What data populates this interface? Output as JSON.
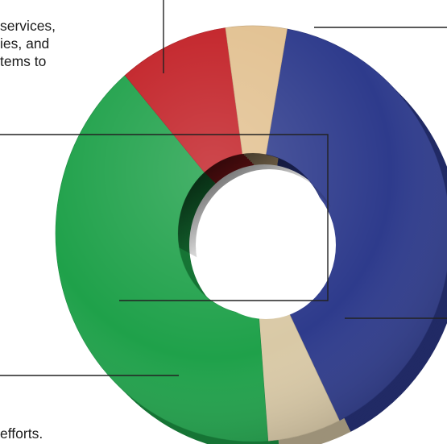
{
  "chart_data": {
    "type": "pie",
    "style": "3d-donut",
    "title": "",
    "legend": "none",
    "slices": [
      {
        "name": "",
        "value": 40,
        "color": "#2e3b8c"
      },
      {
        "name": "",
        "value": 6,
        "color": "#d9c9a6"
      },
      {
        "name": "",
        "value": 40,
        "color": "#1fa14a"
      },
      {
        "name": "",
        "value": 9,
        "color": "#c22026"
      },
      {
        "name": "",
        "value": 5,
        "color": "#e2c191"
      }
    ]
  },
  "annotations": {
    "text_fragments": [
      "services,",
      "ies, and",
      "tems to",
      "efforts."
    ]
  },
  "colors": {
    "blue": "#2e3b8c",
    "tan": "#d9c9a6",
    "green": "#1fa14a",
    "red": "#c22026",
    "peach": "#e2c191",
    "leader_line": "#222222"
  }
}
